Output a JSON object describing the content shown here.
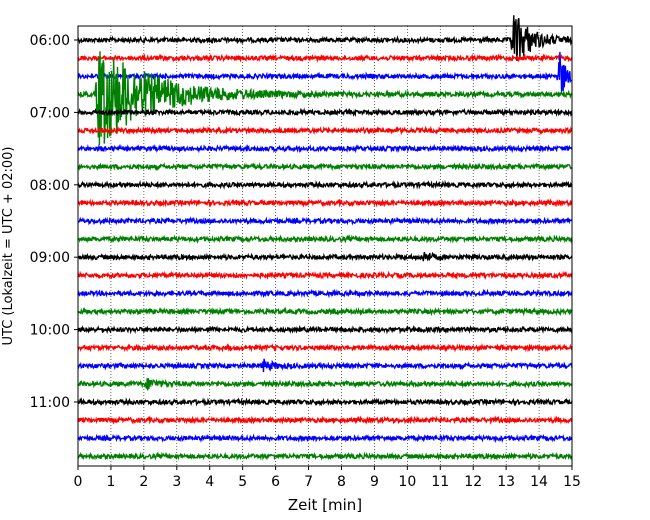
{
  "chart_data": {
    "type": "line",
    "title": "",
    "xlabel": "Zeit  [min]",
    "ylabel": "UTC (Lokalzeit = UTC + 02:00)",
    "xlim": [
      0,
      15
    ],
    "x_ticks": [
      "0",
      "1",
      "2",
      "3",
      "4",
      "5",
      "6",
      "7",
      "8",
      "9",
      "10",
      "11",
      "12",
      "13",
      "14",
      "15"
    ],
    "y_ticks": [
      "06:00",
      "07:00",
      "08:00",
      "09:00",
      "10:00",
      "11:00"
    ],
    "grid": "x-dotted",
    "trace_interval_min": 15,
    "trace_colors": [
      "#000000",
      "#ff0000",
      "#0000ff",
      "#008000"
    ],
    "traces": [
      {
        "start": "06:00",
        "color": "#000000"
      },
      {
        "start": "06:15",
        "color": "#ff0000"
      },
      {
        "start": "06:30",
        "color": "#0000ff"
      },
      {
        "start": "06:45",
        "color": "#008000"
      },
      {
        "start": "07:00",
        "color": "#000000"
      },
      {
        "start": "07:15",
        "color": "#ff0000"
      },
      {
        "start": "07:30",
        "color": "#0000ff"
      },
      {
        "start": "07:45",
        "color": "#008000"
      },
      {
        "start": "08:00",
        "color": "#000000"
      },
      {
        "start": "08:15",
        "color": "#ff0000"
      },
      {
        "start": "08:30",
        "color": "#0000ff"
      },
      {
        "start": "08:45",
        "color": "#008000"
      },
      {
        "start": "09:00",
        "color": "#000000"
      },
      {
        "start": "09:15",
        "color": "#ff0000"
      },
      {
        "start": "09:30",
        "color": "#0000ff"
      },
      {
        "start": "09:45",
        "color": "#008000"
      },
      {
        "start": "10:00",
        "color": "#000000"
      },
      {
        "start": "10:15",
        "color": "#ff0000"
      },
      {
        "start": "10:30",
        "color": "#0000ff"
      },
      {
        "start": "10:45",
        "color": "#008000"
      },
      {
        "start": "11:00",
        "color": "#000000"
      },
      {
        "start": "11:15",
        "color": "#ff0000"
      },
      {
        "start": "11:30",
        "color": "#0000ff"
      },
      {
        "start": "11:45",
        "color": "#008000"
      }
    ],
    "events": [
      {
        "trace": "06:45",
        "x_min": 0.6,
        "amplitude": "very large",
        "duration_min": 4.5
      },
      {
        "trace": "06:00",
        "x_min": 13.2,
        "amplitude": "large",
        "duration_min": 1.5
      },
      {
        "trace": "06:30",
        "x_min": 14.6,
        "amplitude": "large",
        "duration_min": 0.5
      },
      {
        "trace": "09:00",
        "x_min": 10.5,
        "amplitude": "small",
        "duration_min": 0.6
      },
      {
        "trace": "10:30",
        "x_min": 5.6,
        "amplitude": "small",
        "duration_min": 0.8
      },
      {
        "trace": "10:45",
        "x_min": 2.1,
        "amplitude": "small",
        "duration_min": 0.8
      }
    ]
  }
}
